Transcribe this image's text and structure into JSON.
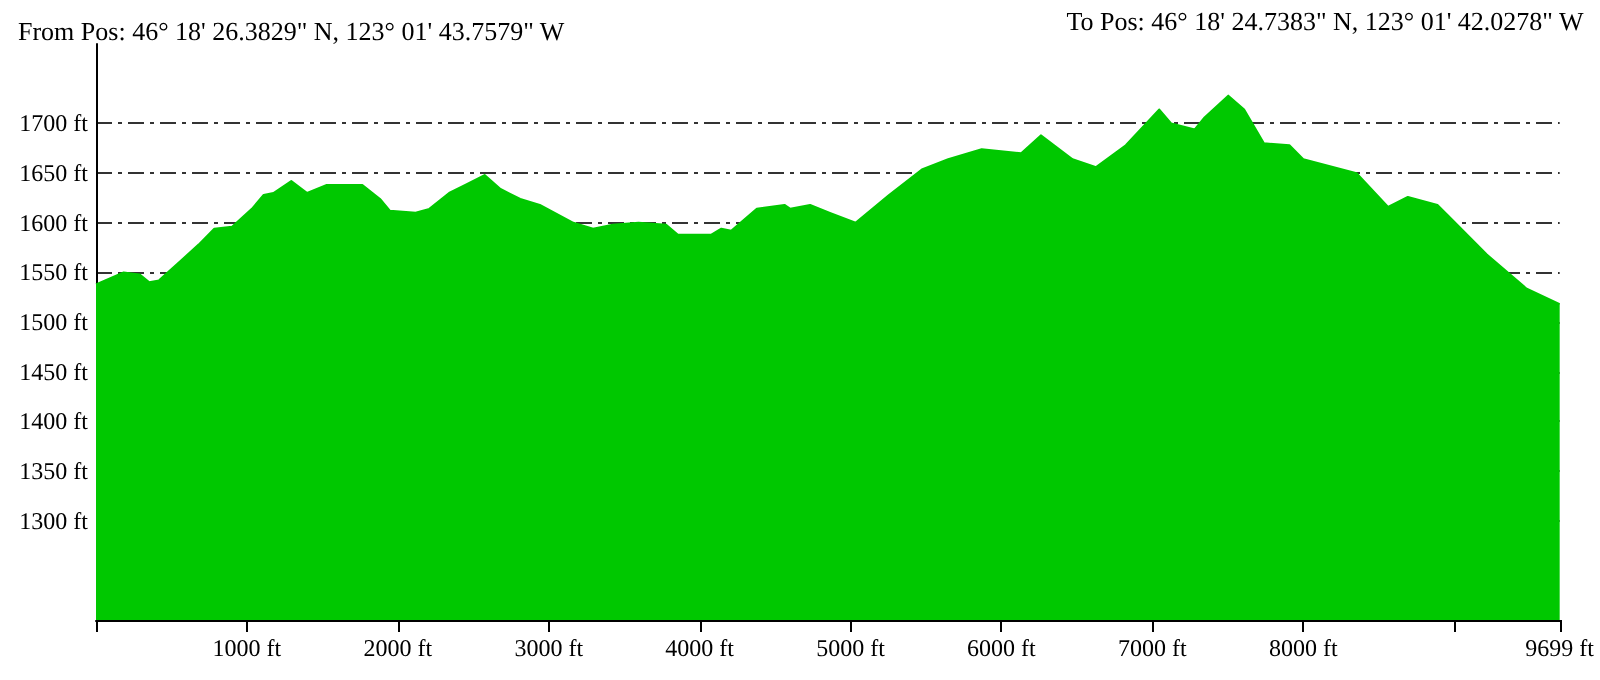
{
  "chart_data": {
    "type": "area",
    "title": "From Pos: 46° 18' 26.3829\" N, 123° 01' 43.7579\" W",
    "annotations": [
      "To Pos: 46° 18' 24.7383\" N, 123° 01' 42.0278\" W"
    ],
    "xlim": [
      0,
      9699
    ],
    "ylim": [
      1200,
      1780
    ],
    "xticks": [
      {
        "value": 0,
        "label": null
      },
      {
        "value": 1000,
        "label": "1000 ft"
      },
      {
        "value": 2000,
        "label": "2000 ft"
      },
      {
        "value": 3000,
        "label": "3000 ft"
      },
      {
        "value": 4000,
        "label": "4000 ft"
      },
      {
        "value": 5000,
        "label": "5000 ft"
      },
      {
        "value": 6000,
        "label": "6000 ft"
      },
      {
        "value": 7000,
        "label": "7000 ft"
      },
      {
        "value": 8000,
        "label": "8000 ft"
      },
      {
        "value": 9000,
        "label": null
      },
      {
        "value": 9699,
        "label": "9699 ft"
      }
    ],
    "yticks": [
      {
        "value": 1300,
        "label": "1300 ft"
      },
      {
        "value": 1350,
        "label": "1350 ft"
      },
      {
        "value": 1400,
        "label": "1400 ft"
      },
      {
        "value": 1450,
        "label": "1450 ft"
      },
      {
        "value": 1500,
        "label": "1500 ft"
      },
      {
        "value": 1550,
        "label": "1550 ft"
      },
      {
        "value": 1600,
        "label": "1600 ft"
      },
      {
        "value": 1650,
        "label": "1650 ft"
      },
      {
        "value": 1700,
        "label": "1700 ft"
      }
    ],
    "grid": "y",
    "line_style": "solid",
    "marker": "none",
    "series": [
      {
        "color": "#00c800",
        "x": [
          0,
          183,
          288,
          353,
          418,
          549,
          680,
          784,
          902,
          1033,
          1111,
          1176,
          1294,
          1399,
          1529,
          1765,
          1882,
          1948,
          2118,
          2209,
          2340,
          2444,
          2575,
          2680,
          2811,
          2941,
          3163,
          3294,
          3425,
          3595,
          3778,
          3856,
          4078,
          4144,
          4209,
          4379,
          4562,
          4601,
          4732,
          4863,
          5033,
          5255,
          5477,
          5647,
          5869,
          6131,
          6261,
          6471,
          6627,
          6824,
          7046,
          7124,
          7281,
          7346,
          7503,
          7608,
          7739,
          7908,
          8000,
          8353,
          8562,
          8693,
          8889,
          8954,
          9216,
          9477,
          9699
        ],
        "values": [
          1538,
          1550,
          1548,
          1540,
          1542,
          1560,
          1578,
          1594,
          1596,
          1614,
          1628,
          1630,
          1642,
          1630,
          1638,
          1638,
          1624,
          1612,
          1610,
          1614,
          1630,
          1638,
          1648,
          1634,
          1624,
          1618,
          1600,
          1594,
          1598,
          1600,
          1598,
          1588,
          1588,
          1594,
          1592,
          1614,
          1618,
          1614,
          1618,
          1610,
          1600,
          1628,
          1654,
          1664,
          1674,
          1670,
          1688,
          1664,
          1656,
          1678,
          1714,
          1700,
          1694,
          1706,
          1728,
          1714,
          1680,
          1678,
          1664,
          1650,
          1616,
          1626,
          1618,
          1608,
          1568,
          1534,
          1518
        ]
      }
    ]
  }
}
